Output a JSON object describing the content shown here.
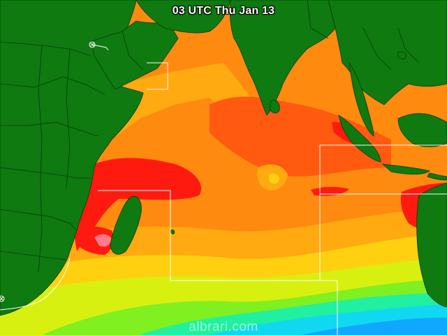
{
  "title": "03 UTC Thu Jan 13",
  "watermark": "albrari.com",
  "colors": {
    "land": "#0e7a10",
    "ocean_hot": "#ff1a10",
    "ocean_warm": "#ff5a10",
    "ocean_mid": "#ff8a10",
    "ocean_orange": "#ffaa10",
    "ocean_yellow": "#ffd010",
    "ocean_lime": "#d8f010",
    "ocean_green": "#80f020",
    "ocean_aqua": "#20f0a0",
    "ocean_cyan": "#10d8f0",
    "ocean_blue": "#10a8ff",
    "outline": "#ffffff"
  }
}
